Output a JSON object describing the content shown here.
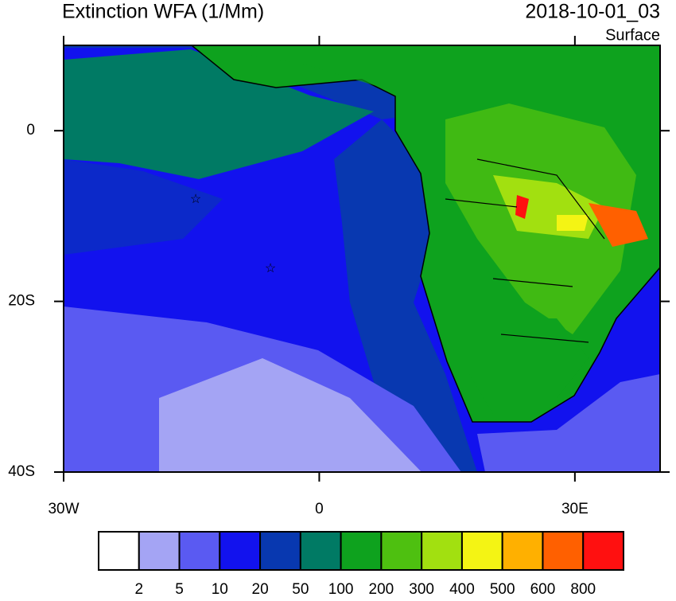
{
  "title": "Extinction WFA (1/Mm)",
  "time": "2018-10-01_03",
  "level": "Surface",
  "map": {
    "lonlim": [
      -30,
      40
    ],
    "latlim": [
      -40,
      10
    ],
    "lonticks": [
      {
        "value": -30,
        "label": "30W"
      },
      0,
      {
        "value": 30,
        "label": "30E"
      }
    ],
    "latticks": [
      0,
      {
        "value": -20,
        "label": "20S"
      },
      {
        "value": -40,
        "label": "40S"
      }
    ]
  },
  "colorbar": {
    "levels": [
      2,
      5,
      10,
      20,
      50,
      100,
      200,
      300,
      400,
      500,
      600,
      800
    ],
    "colors": [
      "#ffffff",
      "#a4a4f4",
      "#5a5af2",
      "#1212ee",
      "#0838b0",
      "#007a64",
      "#0ea21e",
      "#4ec010",
      "#a2e010",
      "#f4f414",
      "#ffb000",
      "#ff6000",
      "#ff1010"
    ]
  }
}
